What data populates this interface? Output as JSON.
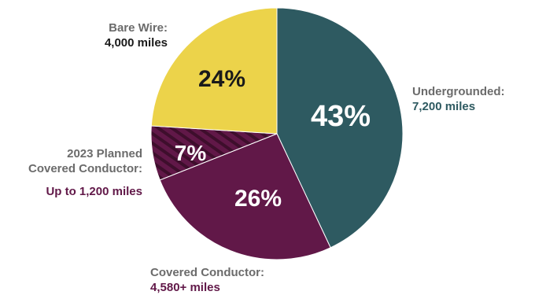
{
  "chart_data": {
    "type": "pie",
    "slices": [
      {
        "key": "undergrounded",
        "name": "Undergrounded:",
        "value_text": "7,200 miles",
        "percent": 43,
        "percent_label": "43%",
        "color": "#2e5a61",
        "text_color": "#2e5a61"
      },
      {
        "key": "covered",
        "name": "Covered Conductor:",
        "value_text": "4,580+ miles",
        "percent": 26,
        "percent_label": "26%",
        "color": "#611848",
        "text_color": "#611848"
      },
      {
        "key": "planned",
        "name_lines": [
          "2023 Planned",
          "Covered Conductor:"
        ],
        "value_text": "Up to 1,200 miles",
        "percent": 7,
        "percent_label": "7%",
        "color": "#611848",
        "hatched": true,
        "text_color": "#611848"
      },
      {
        "key": "bare",
        "name": "Bare Wire:",
        "value_text": "4,000 miles",
        "percent": 24,
        "percent_label": "24%",
        "color": "#ecd34a",
        "text_color": "#1a1a1a"
      }
    ]
  }
}
